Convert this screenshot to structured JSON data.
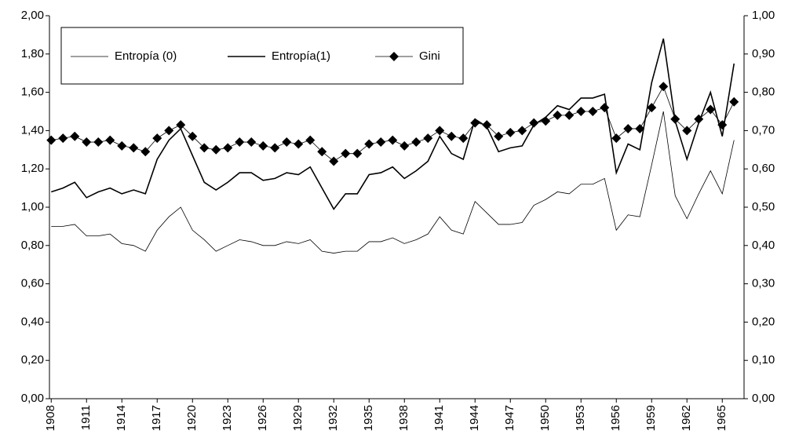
{
  "chart_data": {
    "type": "line",
    "categories": [
      "1908",
      null,
      null,
      "1911",
      null,
      null,
      "1914",
      null,
      null,
      "1917",
      null,
      null,
      "1920",
      null,
      null,
      "1923",
      null,
      null,
      "1926",
      null,
      null,
      "1929",
      null,
      null,
      "1932",
      null,
      null,
      "1935",
      null,
      null,
      "1938",
      null,
      null,
      "1941",
      null,
      null,
      "1944",
      null,
      null,
      "1947",
      null,
      null,
      "1950",
      null,
      null,
      "1953",
      null,
      null,
      "1956",
      null,
      null,
      "1959",
      null,
      null,
      "1962",
      null,
      null,
      "1965",
      null
    ],
    "series": [
      {
        "name": "Entropía (0)",
        "color": "#000000",
        "width": 0.8,
        "values": [
          0.9,
          0.9,
          0.91,
          0.85,
          0.85,
          0.86,
          0.81,
          0.8,
          0.77,
          0.88,
          0.95,
          1.0,
          0.88,
          0.83,
          0.77,
          0.8,
          0.83,
          0.82,
          0.8,
          0.8,
          0.82,
          0.81,
          0.83,
          0.77,
          0.76,
          0.77,
          0.77,
          0.82,
          0.82,
          0.84,
          0.81,
          0.83,
          0.86,
          0.95,
          0.88,
          0.86,
          1.03,
          0.97,
          0.91,
          0.91,
          0.92,
          1.01,
          1.04,
          1.08,
          1.07,
          1.12,
          1.12,
          1.15,
          0.88,
          0.96,
          0.95,
          1.22,
          1.5,
          1.06,
          0.94,
          1.07,
          1.19,
          1.07,
          1.35
        ]
      },
      {
        "name": "Entropía(1)",
        "color": "#000000",
        "width": 1.6,
        "values": [
          1.08,
          1.1,
          1.13,
          1.05,
          1.08,
          1.1,
          1.07,
          1.09,
          1.07,
          1.25,
          1.35,
          1.41,
          1.27,
          1.13,
          1.09,
          1.13,
          1.18,
          1.18,
          1.14,
          1.15,
          1.18,
          1.17,
          1.21,
          1.1,
          0.99,
          1.07,
          1.07,
          1.17,
          1.18,
          1.21,
          1.15,
          1.19,
          1.24,
          1.37,
          1.28,
          1.25,
          1.46,
          1.42,
          1.29,
          1.31,
          1.32,
          1.43,
          1.47,
          1.53,
          1.51,
          1.57,
          1.57,
          1.59,
          1.18,
          1.33,
          1.3,
          1.65,
          1.88,
          1.45,
          1.25,
          1.44,
          1.6,
          1.37,
          1.75
        ]
      },
      {
        "name": "Gini",
        "color": "#000000",
        "width": 0.8,
        "marker": "diamond",
        "axis": "y2",
        "values": [
          0.675,
          0.68,
          0.685,
          0.67,
          0.67,
          0.675,
          0.66,
          0.655,
          0.645,
          0.68,
          0.7,
          0.715,
          0.685,
          0.655,
          0.65,
          0.655,
          0.67,
          0.67,
          0.66,
          0.655,
          0.67,
          0.665,
          0.675,
          0.645,
          0.62,
          0.64,
          0.64,
          0.665,
          0.67,
          0.675,
          0.66,
          0.67,
          0.68,
          0.7,
          0.685,
          0.68,
          0.72,
          0.715,
          0.685,
          0.695,
          0.7,
          0.72,
          0.725,
          0.74,
          0.74,
          0.75,
          0.75,
          0.76,
          0.68,
          0.705,
          0.705,
          0.76,
          0.815,
          0.73,
          0.7,
          0.73,
          0.755,
          0.715,
          0.775
        ]
      }
    ],
    "ylim": [
      0,
      2
    ],
    "yticks": [
      {
        "value": 0,
        "label": "0,00"
      },
      {
        "value": 0.2,
        "label": "0,20"
      },
      {
        "value": 0.4,
        "label": "0,40"
      },
      {
        "value": 0.6,
        "label": "0,60"
      },
      {
        "value": 0.8,
        "label": "0,80"
      },
      {
        "value": 1,
        "label": "1,00"
      },
      {
        "value": 1.2,
        "label": "1,20"
      },
      {
        "value": 1.4,
        "label": "1,40"
      },
      {
        "value": 1.6,
        "label": "1,60"
      },
      {
        "value": 1.8,
        "label": "1,80"
      },
      {
        "value": 2,
        "label": "2,00"
      }
    ],
    "y2lim": [
      0,
      1
    ],
    "y2ticks": [
      {
        "value": 0,
        "label": "0,00"
      },
      {
        "value": 0.1,
        "label": "0,10"
      },
      {
        "value": 0.2,
        "label": "0,20"
      },
      {
        "value": 0.3,
        "label": "0,30"
      },
      {
        "value": 0.4,
        "label": "0,40"
      },
      {
        "value": 0.5,
        "label": "0,50"
      },
      {
        "value": 0.6,
        "label": "0,60"
      },
      {
        "value": 0.7,
        "label": "0,70"
      },
      {
        "value": 0.8,
        "label": "0,80"
      },
      {
        "value": 0.9,
        "label": "0,90"
      },
      {
        "value": 1,
        "label": "1,00"
      }
    ],
    "grid": false,
    "legend": "top-left"
  }
}
